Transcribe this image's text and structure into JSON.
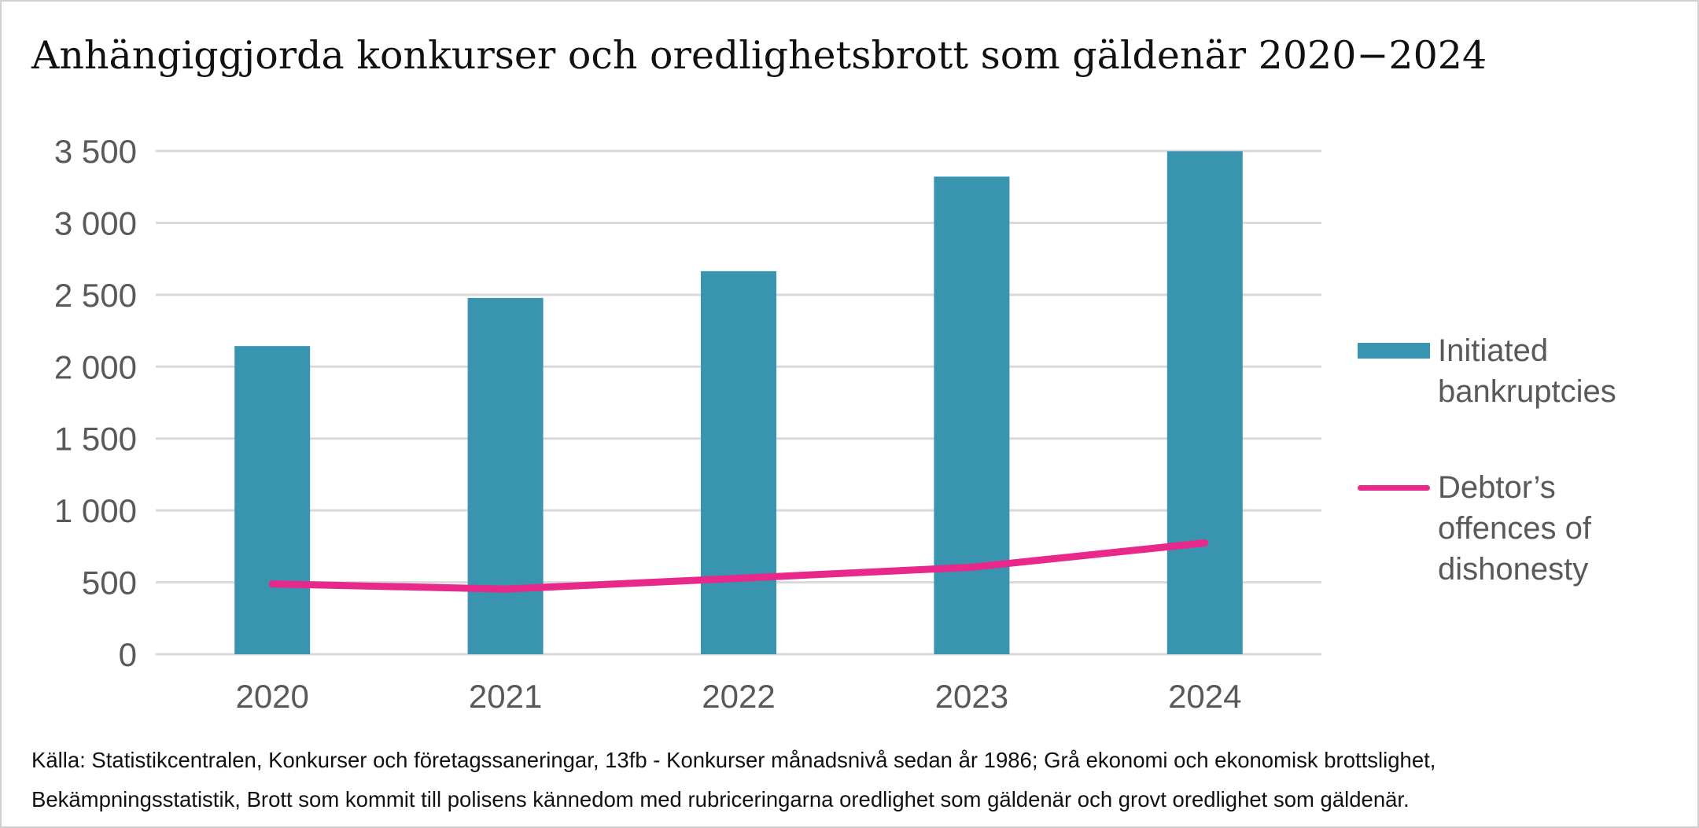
{
  "chart_data": {
    "type": "bar",
    "title": "Anhängiggjorda konkurser och oredlighetsbrott som gäldenär 2020−2024",
    "categories": [
      "2020",
      "2021",
      "2022",
      "2023",
      "2024"
    ],
    "series": [
      {
        "name": "Initiated bankruptcies",
        "type": "bar",
        "color": "#3994AF",
        "values": [
          2143,
          2478,
          2664,
          3322,
          3498
        ]
      },
      {
        "name": "Debtor’s offences of dishonesty",
        "type": "line",
        "color": "#E8288A",
        "values": [
          489,
          453,
          528,
          605,
          774
        ]
      }
    ],
    "yticks": [
      0,
      500,
      1000,
      1500,
      2000,
      2500,
      3000,
      3500
    ],
    "ytick_labels": [
      "0",
      "500",
      "1 000",
      "1 500",
      "2 000",
      "2 500",
      "3 000",
      "3 500"
    ],
    "ylim": [
      0,
      3500
    ],
    "xlabel": "",
    "ylabel": "",
    "grid": true,
    "legend_position": "right"
  },
  "legend": {
    "bars": "Initiated bankruptcies",
    "line": "Debtor’s offences of dishonesty"
  },
  "source": {
    "line1": "Källa: Statistikcentralen, Konkurser och företagssaneringar, 13fb - Konkurser månadsnivå sedan år 1986; Grå ekonomi och ekonomisk brottslighet,",
    "line2": "Bekämpningsstatistik, Brott som kommit till polisens kännedom med rubriceringarna oredlighet som gäldenär och grovt oredlighet som gäldenär."
  }
}
